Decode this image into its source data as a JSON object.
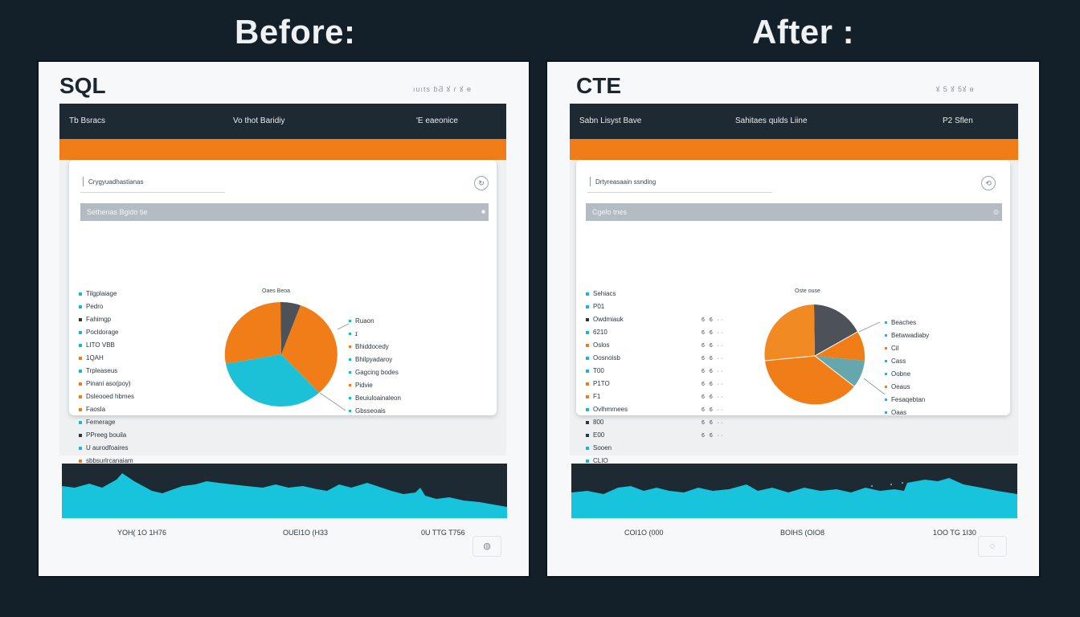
{
  "before": {
    "heading": "Before:",
    "panel_title": "SQL",
    "toolbar_icons": "ıuıtѕ ɓƋ ꙋ ɾ  ꙋ  ɵ",
    "nav": [
      "Tb Bsracs",
      "Vo thot Baridiy",
      "'E eaeonice"
    ],
    "search_text": "Crygyuadhastianas",
    "section_bar": "Sethenas Bgido tie",
    "list": [
      {
        "label": "Tilgplaiage",
        "color": "#19b9d2"
      },
      {
        "label": "Pedro",
        "color": "#19b9d2"
      },
      {
        "label": "Fahimgp",
        "color": "#2b3742"
      },
      {
        "label": "Pocldorage",
        "color": "#19b9d2"
      },
      {
        "label": "LITO VBB",
        "color": "#19b9d2"
      },
      {
        "label": "1QAH",
        "color": "#f07d17"
      },
      {
        "label": "Trpleaseus",
        "color": "#19b9d2"
      },
      {
        "label": "Pinani aso(poy)",
        "color": "#f07d17"
      },
      {
        "label": "Dsleooed hbmes",
        "color": "#f07d17"
      },
      {
        "label": "Faosla",
        "color": "#f07d17"
      },
      {
        "label": "Femerage",
        "color": "#19b9d2"
      },
      {
        "label": "PPreeg bouila",
        "color": "#2b3742"
      },
      {
        "label": "U aurodfoaires",
        "color": "#19b9d2"
      },
      {
        "label": "sbbsurlrcanaiam",
        "color": "#f07d17"
      }
    ],
    "pie_title": "Oaes Beoa",
    "pie_labels": [
      "Ruaon",
      "ɪ",
      "Bhiddocedy",
      "Bhilpyadaroy",
      "Gagcing bodes",
      "Pidvie",
      "Beuiuloainaleon",
      "Gbsseoais"
    ],
    "foot": [
      "YOH( 1O 1H76",
      "OUEI1O (H33",
      "0U TTG T756"
    ]
  },
  "after": {
    "heading": "After :",
    "panel_title": "CTE",
    "toolbar_icons": "ꙋ 5  ꙋ   5ꙋ  ɵ",
    "nav": [
      "Sabn Lisyst Bave",
      "Sahitaes qulds Liine",
      "P2 Sflen"
    ],
    "search_text": "Drtyreasaain ssnding",
    "section_bar": "Cgelo tnes",
    "list": [
      {
        "label": "Sehiacs",
        "color": "#19b9d2"
      },
      {
        "label": "P01",
        "color": "#19b9d2"
      },
      {
        "label": "Owdmiauk",
        "color": "#2b3742"
      },
      {
        "label": "6210",
        "color": "#19b9d2"
      },
      {
        "label": "Oslos",
        "color": "#f07d17"
      },
      {
        "label": "Oosnoisb",
        "color": "#19b9d2"
      },
      {
        "label": "T00",
        "color": "#19b9d2"
      },
      {
        "label": "P1TO",
        "color": "#f07d17"
      },
      {
        "label": "F1",
        "color": "#f07d17"
      },
      {
        "label": "Ovlhmrnees",
        "color": "#19b9d2"
      },
      {
        "label": "800",
        "color": "#2b3742"
      },
      {
        "label": "E00",
        "color": "#2b3742"
      },
      {
        "label": "Sooen",
        "color": "#19b9d2"
      },
      {
        "label": "CLIO",
        "color": "#19b9d2"
      }
    ],
    "nums": [
      "6 6 ··",
      "6 6 ··",
      "6 6 ··",
      "6 6 ··",
      "6 6 ··",
      "6 6 ··",
      "6 6 ··",
      "6 6 ··",
      "6 6 ··",
      "6 6 ··"
    ],
    "pie_title": "Oste ouse",
    "pie_labels": [
      "Beaches",
      "Betwwadiaby",
      "Cil",
      "Cass",
      "Oobne",
      "Oeaus",
      "Fesaqebtan",
      "Oaas"
    ],
    "foot": [
      "COI1O (000",
      "BOIHS (OIO8",
      "1OO TG 1I30"
    ]
  },
  "colors": {
    "orange": "#f07d17",
    "cyan": "#19b9d2",
    "dark": "#1d2a33",
    "slate": "#4c5257",
    "teal": "#65a7ac"
  }
}
